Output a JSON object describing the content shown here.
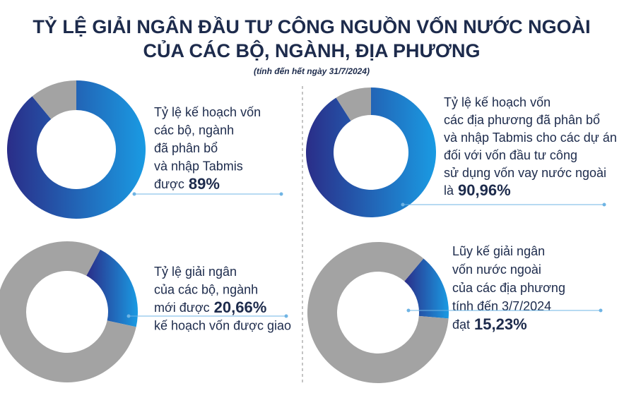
{
  "title": [
    "TỶ LỆ GIẢI NGÂN ĐẦU TƯ CÔNG NGUỒN VỐN NƯỚC NGOÀI",
    "CỦA CÁC BỘ, NGÀNH, ĐỊA PHƯƠNG"
  ],
  "subtitle": "(tính đến hết ngày 31/7/2024)",
  "chart_data": [
    {
      "type": "donut",
      "values": [
        89,
        11
      ],
      "value_labels": [
        "89%",
        null
      ],
      "colors": [
        "#1a9be3",
        "#a3a3a3"
      ],
      "text_before": [
        "Tỷ lệ kế hoạch vốn",
        "các bộ, ngành",
        "đã phân bổ",
        "và nhập Tabmis",
        "được"
      ],
      "text_after": []
    },
    {
      "type": "donut",
      "values": [
        90.96,
        9.04
      ],
      "value_labels": [
        "90,96%",
        null
      ],
      "colors": [
        "#1a9be3",
        "#a3a3a3"
      ],
      "text_before": [
        "Tỷ lệ kế hoạch vốn",
        "các địa phương đã phân bổ",
        "và nhập Tabmis cho các dự án",
        "đối với vốn đầu tư công",
        "sử dụng vốn vay nước ngoài",
        "là"
      ],
      "text_after": []
    },
    {
      "type": "donut",
      "values": [
        20.66,
        79.34
      ],
      "value_labels": [
        "20,66%",
        null
      ],
      "colors": [
        "#1a9be3",
        "#a3a3a3"
      ],
      "text_before": [
        "Tỷ lệ giải ngân",
        "của các bộ, ngành",
        "mới được"
      ],
      "text_after": [
        "kế hoạch vốn được giao"
      ]
    },
    {
      "type": "donut",
      "values": [
        15.23,
        84.77
      ],
      "value_labels": [
        "15,23%",
        null
      ],
      "colors": [
        "#1a9be3",
        "#a3a3a3"
      ],
      "text_before": [
        "Lũy kế giải ngân",
        "vốn nước ngoài",
        "của các địa phương",
        "tính đến 3/7/2024",
        "đạt"
      ],
      "text_after": []
    }
  ]
}
